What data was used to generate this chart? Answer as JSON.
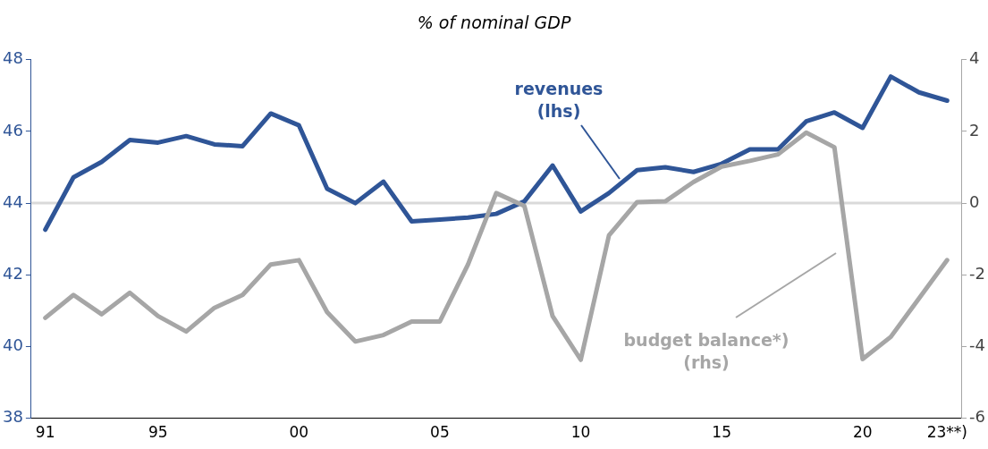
{
  "chart_data": {
    "type": "line",
    "title": "% of nominal GDP",
    "categories": [
      "91",
      null,
      null,
      null,
      "95",
      null,
      null,
      null,
      null,
      "00",
      null,
      null,
      null,
      null,
      "05",
      null,
      null,
      null,
      null,
      "10",
      null,
      null,
      null,
      null,
      "15",
      null,
      null,
      null,
      null,
      "20",
      null,
      null,
      "23**)"
    ],
    "series": [
      {
        "name": "revenues (lhs)",
        "color": "#2f5597",
        "values": [
          43.26,
          44.72,
          45.15,
          45.76,
          45.69,
          45.87,
          45.64,
          45.59,
          46.5,
          46.17,
          44.4,
          44.0,
          44.6,
          43.49,
          43.54,
          43.6,
          43.7,
          44.05,
          45.05,
          43.77,
          44.28,
          44.92,
          45.0,
          44.87,
          45.1,
          45.5,
          45.5,
          46.28,
          46.53,
          46.1,
          47.53,
          47.09,
          46.86
        ]
      },
      {
        "name": "budget balance*) (rhs)",
        "color": "#a6a6a6",
        "axis": "y2",
        "values": [
          -3.2,
          -2.56,
          -3.1,
          -2.5,
          -3.15,
          -3.58,
          -2.92,
          -2.56,
          -1.71,
          -1.59,
          -3.04,
          -3.86,
          -3.68,
          -3.3,
          -3.3,
          -1.71,
          0.28,
          -0.08,
          -3.15,
          -4.37,
          -0.9,
          0.03,
          0.05,
          0.59,
          1.02,
          1.18,
          1.36,
          1.97,
          1.56,
          -4.35,
          -3.73,
          -2.66,
          -1.59
        ]
      }
    ],
    "ylim": [
      38,
      48
    ],
    "yticks": [
      38,
      40,
      42,
      44,
      46,
      48
    ],
    "y2lim": [
      -6,
      4
    ],
    "y2ticks": [
      -6,
      -4,
      -2,
      0,
      2,
      4
    ],
    "ref_lines": [
      {
        "axis": "y2",
        "value": 0,
        "color": "#d9d9d9"
      }
    ],
    "grid": false,
    "legend": false,
    "line_style": "solid",
    "marker": "none"
  }
}
